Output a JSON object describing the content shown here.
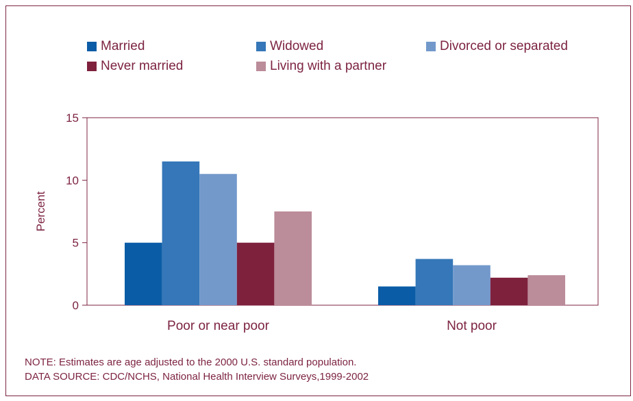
{
  "legend": [
    {
      "label": "Married",
      "color": "#0b5ca6"
    },
    {
      "label": "Widowed",
      "color": "#3577b8"
    },
    {
      "label": "Divorced or separated",
      "color": "#7399cb"
    },
    {
      "label": "Never married",
      "color": "#7e213d"
    },
    {
      "label": "Living with a partner",
      "color": "#bb8c9a"
    }
  ],
  "notes": {
    "note": "NOTE: Estimates are age adjusted to the 2000 U.S. standard population.",
    "source": "DATA SOURCE: CDC/NCHS, National Health Interview Surveys,1999-2002"
  },
  "chart_data": {
    "type": "bar",
    "title": "",
    "xlabel": "",
    "ylabel": "Percent",
    "ylim": [
      0,
      15
    ],
    "yticks": [
      0,
      5,
      10,
      15
    ],
    "categories": [
      "Poor or near poor",
      "Not  poor"
    ],
    "series": [
      {
        "name": "Married",
        "color": "#0b5ca6",
        "values": [
          5.0,
          1.5
        ]
      },
      {
        "name": "Widowed",
        "color": "#3577b8",
        "values": [
          11.5,
          3.7
        ]
      },
      {
        "name": "Divorced or separated",
        "color": "#7399cb",
        "values": [
          10.5,
          3.2
        ]
      },
      {
        "name": "Never married",
        "color": "#7e213d",
        "values": [
          5.0,
          2.2
        ]
      },
      {
        "name": "Living with a partner",
        "color": "#bb8c9a",
        "values": [
          7.5,
          2.4
        ]
      }
    ],
    "grid": false,
    "legend_position": "top"
  }
}
